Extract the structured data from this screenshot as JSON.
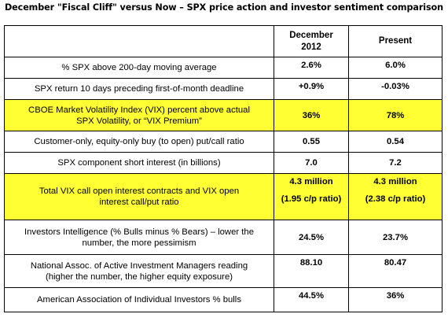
{
  "title": "December \"Fiscal Cliff\" versus Now – SPX price action and investor sentiment comparison",
  "columns": {
    "label": "",
    "december_line1": "December",
    "december_line2": "2012",
    "present": "Present"
  },
  "highlight_color": "#ffff33",
  "rows": [
    {
      "label": "% SPX above 200-day moving average",
      "december": "2.6%",
      "present": "6.0%",
      "highlight": false
    },
    {
      "label": "SPX return 10 days preceding first-of-month deadline",
      "december": "+0.9%",
      "present": "-0.03%",
      "highlight": false
    },
    {
      "label_line1": "CBOE Market Volatility Index (VIX) percent above actual",
      "label_line2": "SPX Volatility, or “VIX Premium”",
      "december": "36%",
      "present": "78%",
      "highlight": true
    },
    {
      "label": "Customer-only, equity-only buy (to open) put/call ratio",
      "december": "0.55",
      "present": "0.54",
      "highlight": false
    },
    {
      "label": "SPX component short interest (in billions)",
      "december": "7.0",
      "present": "7.2",
      "highlight": false
    },
    {
      "label_line1": "Total VIX call open interest contracts and VIX open",
      "label_line2": "interest call/put ratio",
      "december_line1": "4.3 million",
      "december_line2": "(1.95 c/p ratio)",
      "present_line1": "4.3 million",
      "present_line2": "(2.38 c/p ratio)",
      "highlight": true
    },
    {
      "label_line1": "Investors Intelligence (% Bulls minus % Bears) – lower the",
      "label_line2": "number, the more pessimism",
      "december": "24.5%",
      "present": "23.7%",
      "highlight": false
    },
    {
      "label_line1": "National Assoc. of Active Investment Managers reading",
      "label_line2": "(higher the number, the higher equity exposure)",
      "december": "88.10",
      "present": "80.47",
      "highlight": false
    },
    {
      "label": "American Association of Individual Investors % bulls",
      "december": "44.5%",
      "present": "36%",
      "highlight": false
    }
  ]
}
